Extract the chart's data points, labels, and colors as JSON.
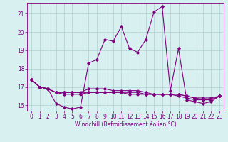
{
  "title": "",
  "xlabel": "Windchill (Refroidissement éolien,°C)",
  "ylabel": "",
  "background_color": "#d8f0f0",
  "grid_color": "#b0d0d0",
  "line_color": "#800080",
  "xlim": [
    -0.5,
    23.5
  ],
  "ylim": [
    15.7,
    21.6
  ],
  "yticks": [
    16,
    17,
    18,
    19,
    20,
    21
  ],
  "xticks": [
    0,
    1,
    2,
    3,
    4,
    5,
    6,
    7,
    8,
    9,
    10,
    11,
    12,
    13,
    14,
    15,
    16,
    17,
    18,
    19,
    20,
    21,
    22,
    23
  ],
  "series1_x": [
    0,
    1,
    2,
    3,
    4,
    5,
    6,
    7,
    8,
    9,
    10,
    11,
    12,
    13,
    14,
    15,
    16,
    17,
    18,
    19,
    20,
    21,
    22,
    23
  ],
  "series1_y": [
    17.4,
    17.0,
    16.9,
    16.1,
    15.9,
    15.8,
    15.9,
    18.3,
    18.5,
    19.6,
    19.5,
    20.3,
    19.1,
    18.9,
    19.6,
    21.1,
    21.4,
    16.8,
    19.1,
    16.3,
    16.2,
    16.1,
    16.2,
    16.5
  ],
  "series2_x": [
    0,
    1,
    2,
    3,
    4,
    5,
    6,
    7,
    8,
    9,
    10,
    11,
    12,
    13,
    14,
    15,
    16,
    17,
    18,
    19,
    20,
    21,
    22,
    23
  ],
  "series2_y": [
    17.4,
    17.0,
    16.9,
    16.7,
    16.7,
    16.7,
    16.7,
    16.7,
    16.7,
    16.7,
    16.7,
    16.7,
    16.7,
    16.7,
    16.6,
    16.6,
    16.6,
    16.6,
    16.6,
    16.5,
    16.4,
    16.4,
    16.4,
    16.5
  ],
  "series3_x": [
    0,
    1,
    2,
    3,
    4,
    5,
    6,
    7,
    8,
    9,
    10,
    11,
    12,
    13,
    14,
    15,
    16,
    17,
    18,
    19,
    20,
    21,
    22,
    23
  ],
  "series3_y": [
    17.4,
    17.0,
    16.9,
    16.7,
    16.7,
    16.7,
    16.7,
    16.9,
    16.9,
    16.9,
    16.8,
    16.8,
    16.8,
    16.8,
    16.7,
    16.6,
    16.6,
    16.6,
    16.5,
    16.4,
    16.3,
    16.3,
    16.3,
    16.5
  ],
  "series4_x": [
    0,
    1,
    2,
    3,
    4,
    5,
    6,
    7,
    8,
    9,
    10,
    11,
    12,
    13,
    14,
    15,
    16,
    17,
    18,
    19,
    20,
    21,
    22,
    23
  ],
  "series4_y": [
    17.4,
    17.0,
    16.9,
    16.7,
    16.6,
    16.6,
    16.6,
    16.7,
    16.7,
    16.7,
    16.7,
    16.7,
    16.6,
    16.6,
    16.6,
    16.6,
    16.6,
    16.6,
    16.6,
    16.5,
    16.4,
    16.3,
    16.3,
    16.5
  ],
  "tick_fontsize": 5.5,
  "xlabel_fontsize": 5.5
}
